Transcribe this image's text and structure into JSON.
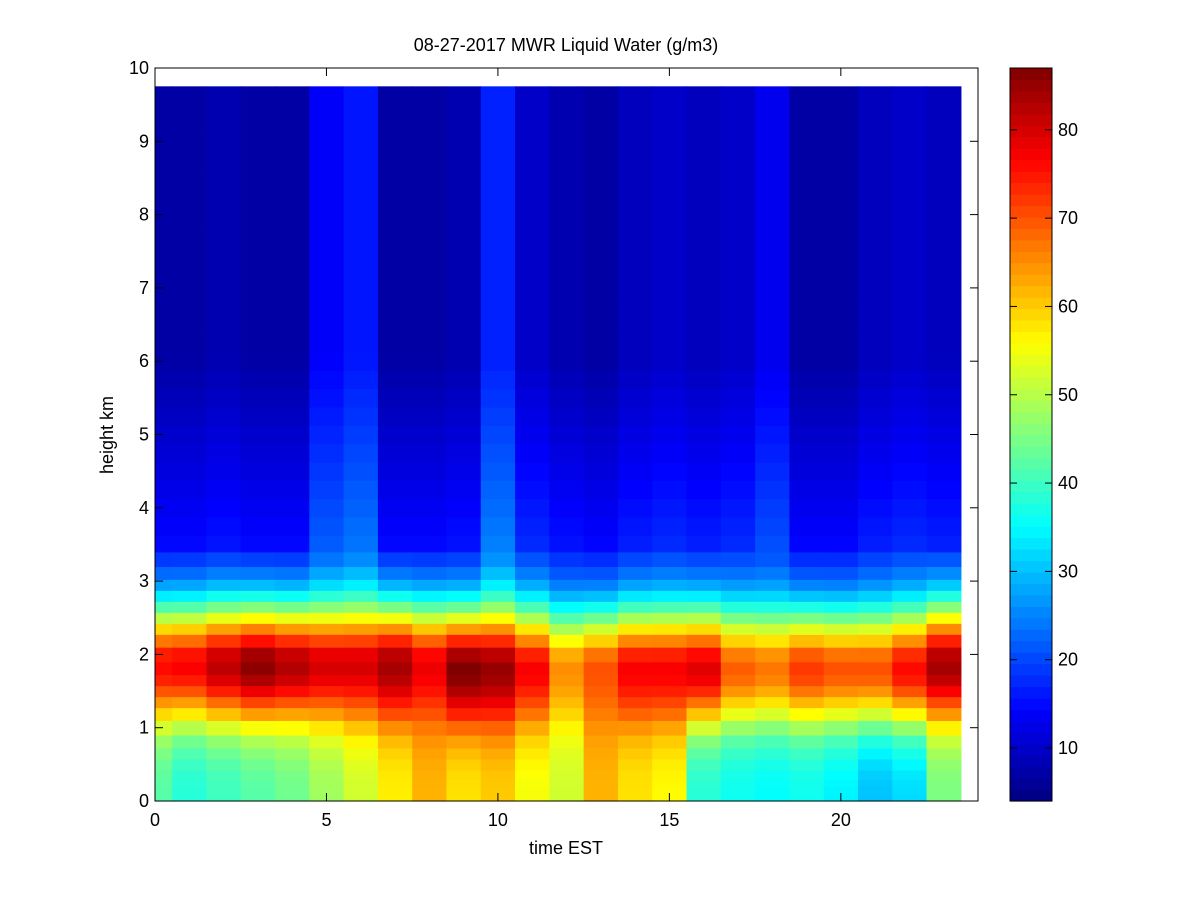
{
  "chart_data": {
    "type": "heatmap",
    "title": "08-27-2017 MWR Liquid Water (g/m3)",
    "xlabel": "time EST",
    "ylabel": "height km",
    "xlim": [
      0,
      24
    ],
    "ylim": [
      0,
      10
    ],
    "xticks": [
      0,
      5,
      10,
      15,
      20
    ],
    "yticks": [
      0,
      1,
      2,
      3,
      4,
      5,
      6,
      7,
      8,
      9,
      10
    ],
    "colormap": "jet",
    "clim": [
      4,
      87
    ],
    "colorbar_ticks": [
      10,
      20,
      30,
      40,
      50,
      60,
      70,
      80
    ],
    "x": [
      0,
      1,
      2,
      3,
      4,
      5,
      6,
      7,
      8,
      9,
      10,
      11,
      12,
      13,
      14,
      15,
      16,
      17,
      18,
      19,
      20,
      21,
      22,
      23
    ],
    "x_extent": [
      0,
      23.5
    ],
    "y_top": 9.75,
    "y": [
      0.05,
      0.15,
      0.25,
      0.35,
      0.5,
      0.65,
      0.8,
      1.0,
      1.2,
      1.35,
      1.5,
      1.65,
      1.8,
      2.0,
      2.2,
      2.35,
      2.5,
      2.65,
      2.8,
      2.95,
      3.1,
      3.3,
      3.5,
      3.75,
      4.0,
      4.25,
      4.5,
      4.75,
      5.0,
      5.25,
      5.5,
      5.75,
      6.0,
      6.25,
      6.5,
      6.75,
      7.0,
      7.25,
      7.5,
      7.75,
      8.0,
      8.25,
      8.5,
      8.75,
      9.0,
      9.25,
      9.5
    ],
    "profiles": {
      "peak": [
        76,
        77,
        82,
        86,
        83,
        80,
        80,
        84,
        78,
        87,
        85,
        77,
        65,
        70,
        77,
        77,
        79,
        69,
        67,
        72,
        70,
        70,
        76,
        84
      ],
      "peak_height": [
        1.85,
        1.85,
        1.85,
        1.85,
        1.85,
        1.85,
        1.85,
        1.85,
        1.85,
        1.8,
        1.8,
        1.8,
        1.8,
        1.8,
        1.8,
        1.8,
        1.8,
        1.8,
        1.8,
        1.8,
        1.8,
        1.8,
        1.8,
        1.85
      ],
      "surface": [
        42,
        38,
        40,
        42,
        44,
        48,
        52,
        57,
        62,
        58,
        60,
        55,
        52,
        62,
        58,
        56,
        38,
        36,
        35,
        36,
        34,
        30,
        32,
        45
      ],
      "upper": [
        7,
        7,
        8,
        7,
        7,
        12,
        14,
        7,
        7,
        8,
        15,
        10,
        8,
        7,
        9,
        10,
        9,
        10,
        11,
        7,
        7,
        9,
        10,
        9
      ]
    }
  }
}
